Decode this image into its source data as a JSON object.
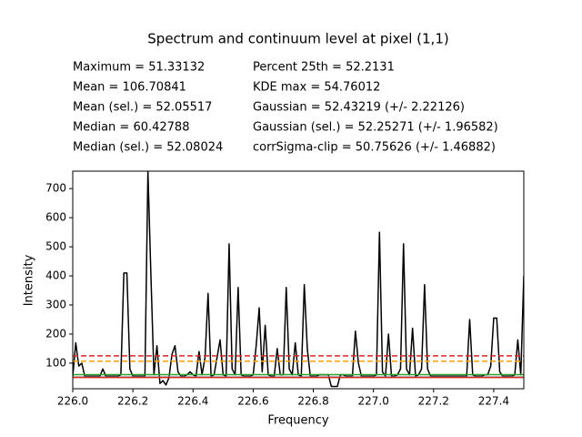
{
  "chart_data": {
    "type": "line",
    "title": "Spectrum and continuum level at pixel (1,1)",
    "stats_left": [
      "Maximum = 51.33132",
      "Mean = 106.70841",
      "Mean (sel.) = 52.05517",
      "Median = 60.42788",
      "Median (sel.) = 52.08024"
    ],
    "stats_right": [
      "Percent 25th = 52.2131",
      "KDE max = 54.76012",
      "Gaussian = 52.43219 (+/- 2.22126)",
      "Gaussian (sel.) = 52.25271 (+/- 1.96582)",
      "corrSigma-clip = 50.75626 (+/- 1.46882)"
    ],
    "x_label": "Frequency",
    "y_label": "Intensity",
    "x": [
      226.0,
      226.01,
      226.02,
      226.03,
      226.04,
      226.05,
      226.06,
      226.07,
      226.08,
      226.09,
      226.1,
      226.11,
      226.12,
      226.13,
      226.14,
      226.15,
      226.16,
      226.17,
      226.18,
      226.19,
      226.2,
      226.21,
      226.22,
      226.23,
      226.24,
      226.25,
      226.26,
      226.27,
      226.28,
      226.29,
      226.3,
      226.31,
      226.32,
      226.33,
      226.34,
      226.35,
      226.36,
      226.37,
      226.38,
      226.39,
      226.4,
      226.41,
      226.42,
      226.43,
      226.44,
      226.45,
      226.46,
      226.47,
      226.48,
      226.49,
      226.5,
      226.51,
      226.52,
      226.53,
      226.54,
      226.55,
      226.56,
      226.57,
      226.58,
      226.59,
      226.6,
      226.61,
      226.62,
      226.63,
      226.64,
      226.65,
      226.66,
      226.67,
      226.68,
      226.69,
      226.7,
      226.71,
      226.72,
      226.73,
      226.74,
      226.75,
      226.76,
      226.77,
      226.78,
      226.79,
      226.8,
      226.81,
      226.82,
      226.83,
      226.84,
      226.85,
      226.86,
      226.87,
      226.88,
      226.89,
      226.9,
      226.91,
      226.92,
      226.93,
      226.94,
      226.95,
      226.96,
      226.97,
      226.98,
      226.99,
      227.0,
      227.01,
      227.02,
      227.03,
      227.04,
      227.05,
      227.06,
      227.07,
      227.08,
      227.09,
      227.1,
      227.11,
      227.12,
      227.13,
      227.14,
      227.15,
      227.16,
      227.17,
      227.18,
      227.19,
      227.2,
      227.21,
      227.22,
      227.23,
      227.24,
      227.25,
      227.26,
      227.27,
      227.28,
      227.29,
      227.3,
      227.31,
      227.32,
      227.33,
      227.34,
      227.35,
      227.36,
      227.37,
      227.38,
      227.39,
      227.4,
      227.41,
      227.42,
      227.43,
      227.44,
      227.45,
      227.46,
      227.47,
      227.48,
      227.49,
      227.5
    ],
    "values": [
      55,
      170,
      90,
      100,
      55,
      55,
      55,
      55,
      55,
      55,
      80,
      55,
      55,
      55,
      55,
      55,
      60,
      410,
      410,
      80,
      55,
      55,
      55,
      55,
      55,
      760,
      400,
      60,
      160,
      30,
      40,
      25,
      50,
      130,
      160,
      70,
      55,
      55,
      60,
      70,
      60,
      55,
      140,
      60,
      120,
      340,
      55,
      60,
      120,
      180,
      60,
      55,
      510,
      80,
      60,
      360,
      60,
      55,
      55,
      55,
      60,
      160,
      290,
      70,
      230,
      60,
      55,
      55,
      150,
      60,
      60,
      360,
      80,
      60,
      170,
      60,
      55,
      370,
      150,
      55,
      55,
      55,
      60,
      60,
      60,
      60,
      20,
      20,
      20,
      60,
      60,
      55,
      55,
      55,
      210,
      100,
      55,
      55,
      55,
      55,
      55,
      60,
      550,
      70,
      55,
      200,
      55,
      55,
      60,
      80,
      510,
      80,
      60,
      220,
      55,
      60,
      80,
      370,
      80,
      55,
      55,
      55,
      55,
      55,
      55,
      55,
      55,
      55,
      55,
      55,
      55,
      55,
      250,
      60,
      55,
      55,
      55,
      60,
      60,
      90,
      255,
      255,
      70,
      55,
      55,
      55,
      55,
      60,
      180,
      60,
      400
    ],
    "color": "#000000",
    "levels": [
      {
        "value": 125,
        "color": "#d62728",
        "dashed": true
      },
      {
        "value": 106.70841,
        "color": "#ff9f0e",
        "dashed": true
      },
      {
        "value": 60.42788,
        "color": "#2ca02c",
        "dashed": false
      },
      {
        "value": 52.2131,
        "color": "#8c8c8c",
        "dashed": false
      },
      {
        "value": 50.75626,
        "color": "#d62728",
        "dashed": false
      }
    ],
    "xlim": [
      226.0,
      227.5
    ],
    "ylim": [
      12,
      760
    ],
    "xticks": [
      {
        "value": 226,
        "label": "226.0"
      },
      226.2,
      226.4,
      226.6,
      226.8,
      {
        "value": 227,
        "label": "227.0"
      },
      227.2,
      227.4
    ],
    "yticks": [
      100,
      200,
      300,
      400,
      500,
      600,
      700
    ]
  }
}
